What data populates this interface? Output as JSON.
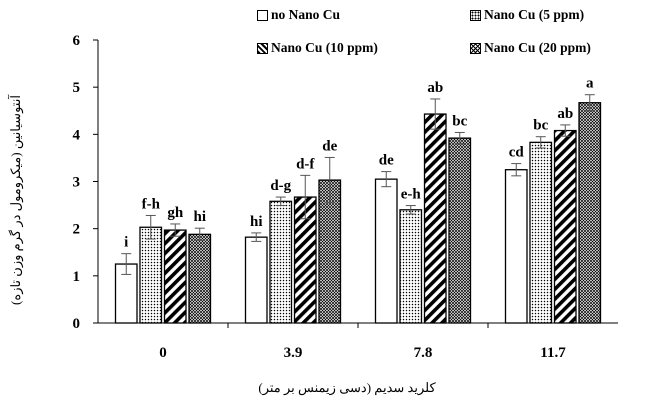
{
  "chart_data": {
    "type": "bar",
    "title": "",
    "xlabel": "کلرید سدیم (دسی زیمنس بر متر)",
    "ylabel": "آنتوسیانین (میکرومول در گرم وزن تازه)",
    "categories": [
      "0",
      "3.9",
      "7.8",
      "11.7"
    ],
    "ylim": [
      0,
      6
    ],
    "yticks": [
      "0",
      "1",
      "2",
      "3",
      "4",
      "5",
      "6"
    ],
    "legend_position": "top",
    "series": [
      {
        "name": "no Nano Cu",
        "pattern": "plain",
        "values": [
          1.25,
          1.82,
          3.05,
          3.25
        ],
        "errors": [
          0.22,
          0.09,
          0.16,
          0.13
        ],
        "letters": [
          "i",
          "hi",
          "de",
          "cd"
        ]
      },
      {
        "name": "Nano Cu (5 ppm)",
        "pattern": "dots",
        "values": [
          2.03,
          2.58,
          2.4,
          3.83
        ],
        "errors": [
          0.25,
          0.09,
          0.09,
          0.12
        ],
        "letters": [
          "f-h",
          "d-g",
          "e-h",
          "bc"
        ]
      },
      {
        "name": "Nano Cu (10 ppm)",
        "pattern": "diagonal",
        "values": [
          1.97,
          2.67,
          4.43,
          4.08
        ],
        "errors": [
          0.13,
          0.46,
          0.32,
          0.12
        ],
        "letters": [
          "gh",
          "d-f",
          "ab",
          "ab"
        ]
      },
      {
        "name": "Nano Cu (20 ppm)",
        "pattern": "crosshatch",
        "values": [
          1.88,
          3.03,
          3.92,
          4.67
        ],
        "errors": [
          0.13,
          0.48,
          0.12,
          0.17
        ],
        "letters": [
          "hi",
          "de",
          "bc",
          "a"
        ]
      }
    ]
  }
}
